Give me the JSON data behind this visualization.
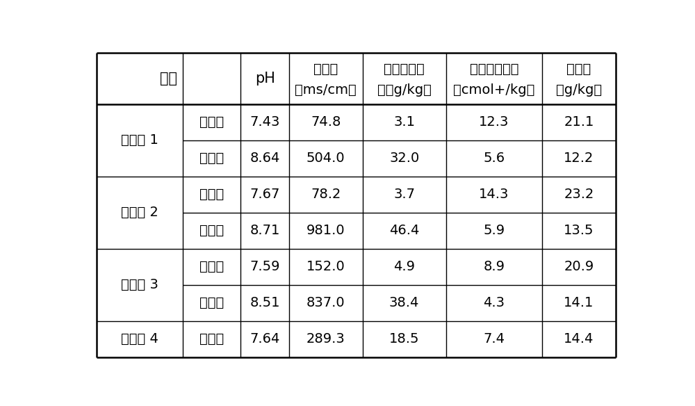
{
  "background_color": "#ffffff",
  "line_color": "#000000",
  "text_color": "#000000",
  "font_size": 14,
  "col_widths_ratio": [
    1.35,
    0.9,
    0.75,
    1.15,
    1.3,
    1.5,
    1.15
  ],
  "header_texts": [
    "组别",
    "pH",
    "电导率\n（ms/cm）",
    "水溶性盐总\n量（g/kg）",
    "阳离子交换量\n（cmol+/kg）",
    "有机质\n（g/kg）"
  ],
  "group_labels": [
    "实施例 1",
    "实施例 2",
    "实施例 3",
    "实施例 4"
  ],
  "subrow_labels": [
    [
      "实验组",
      "对照组"
    ],
    [
      "实验组",
      "对照组"
    ],
    [
      "实验组",
      "对照组"
    ],
    [
      "实验组"
    ]
  ],
  "data": [
    [
      "7.43",
      "74.8",
      "3.1",
      "12.3",
      "21.1"
    ],
    [
      "8.64",
      "504.0",
      "32.0",
      "5.6",
      "12.2"
    ],
    [
      "7.67",
      "78.2",
      "3.7",
      "14.3",
      "23.2"
    ],
    [
      "8.71",
      "981.0",
      "46.4",
      "5.9",
      "13.5"
    ],
    [
      "7.59",
      "152.0",
      "4.9",
      "8.9",
      "20.9"
    ],
    [
      "8.51",
      "837.0",
      "38.4",
      "4.3",
      "14.1"
    ],
    [
      "7.64",
      "289.3",
      "18.5",
      "7.4",
      "14.4"
    ]
  ]
}
